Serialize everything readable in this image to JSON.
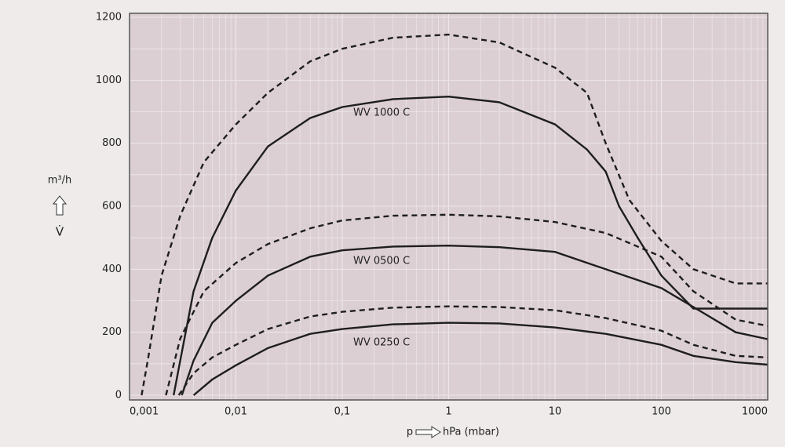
{
  "chart_data": {
    "type": "line",
    "x_label_symbol": "p",
    "x_label": "hPa (mbar)",
    "y_label": "m³/h",
    "y_label_symbol": "V̇",
    "xscale": "log",
    "xlim": [
      0.001,
      1000
    ],
    "xticks": [
      {
        "value": 0.001,
        "label": "0,001"
      },
      {
        "value": 0.01,
        "label": "0,01"
      },
      {
        "value": 0.1,
        "label": "0,1"
      },
      1,
      10,
      100,
      1000
    ],
    "ylim": [
      0,
      1200
    ],
    "yticks": [
      0,
      200,
      400,
      600,
      800,
      1000,
      1200
    ],
    "grid": true,
    "series": [
      {
        "style": "dashed",
        "color": "#1e1e1e",
        "x": [
          0.0013,
          0.0015,
          0.002,
          0.003,
          0.005,
          0.01,
          0.02,
          0.05,
          0.1,
          0.3,
          1,
          3,
          10,
          20,
          30,
          50,
          100,
          200,
          500,
          1000
        ],
        "values": [
          0,
          120,
          380,
          570,
          740,
          860,
          960,
          1060,
          1100,
          1135,
          1145,
          1120,
          1040,
          960,
          800,
          620,
          490,
          400,
          355,
          355
        ]
      },
      {
        "name": "WV 1000 C",
        "style": "solid",
        "color": "#1e1e1e",
        "x": [
          0.0026,
          0.003,
          0.004,
          0.006,
          0.01,
          0.02,
          0.05,
          0.1,
          0.3,
          1,
          3,
          10,
          20,
          30,
          40,
          60,
          100,
          200,
          500,
          1000
        ],
        "values": [
          0,
          110,
          330,
          500,
          650,
          790,
          880,
          915,
          940,
          948,
          930,
          860,
          780,
          710,
          600,
          500,
          380,
          275,
          275,
          275
        ]
      },
      {
        "style": "dashed",
        "color": "#1e1e1e",
        "x": [
          0.0022,
          0.003,
          0.005,
          0.01,
          0.02,
          0.05,
          0.1,
          0.3,
          1,
          3,
          10,
          30,
          100,
          200,
          500,
          1000
        ],
        "values": [
          0,
          180,
          330,
          420,
          480,
          530,
          555,
          570,
          573,
          568,
          550,
          515,
          440,
          330,
          240,
          220
        ]
      },
      {
        "name": "WV 0500 C",
        "style": "solid",
        "color": "#1e1e1e",
        "x": [
          0.0031,
          0.004,
          0.006,
          0.01,
          0.02,
          0.05,
          0.1,
          0.3,
          1,
          3,
          10,
          30,
          100,
          200,
          500,
          1000
        ],
        "values": [
          0,
          110,
          230,
          300,
          380,
          440,
          460,
          472,
          475,
          470,
          455,
          400,
          340,
          280,
          200,
          178
        ]
      },
      {
        "style": "dashed",
        "color": "#1e1e1e",
        "x": [
          0.0029,
          0.004,
          0.006,
          0.01,
          0.02,
          0.05,
          0.1,
          0.3,
          1,
          3,
          10,
          30,
          100,
          200,
          500,
          1000
        ],
        "values": [
          0,
          70,
          120,
          160,
          210,
          250,
          265,
          278,
          282,
          280,
          270,
          245,
          205,
          160,
          125,
          120
        ]
      },
      {
        "name": "WV 0250 C",
        "style": "solid",
        "color": "#1e1e1e",
        "x": [
          0.004,
          0.006,
          0.01,
          0.02,
          0.05,
          0.1,
          0.3,
          1,
          3,
          10,
          30,
          100,
          200,
          500,
          1000
        ],
        "values": [
          0,
          50,
          95,
          150,
          195,
          210,
          225,
          230,
          228,
          215,
          195,
          160,
          125,
          105,
          97
        ]
      }
    ]
  }
}
